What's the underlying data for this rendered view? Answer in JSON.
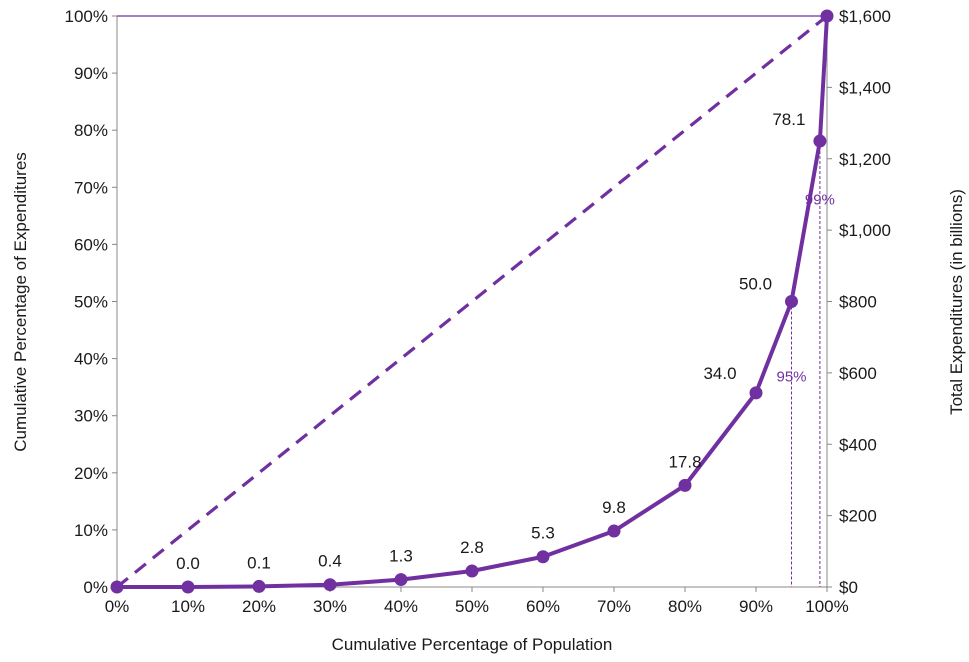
{
  "chart_data": {
    "type": "line",
    "x": [
      "0%",
      "10%",
      "20%",
      "30%",
      "40%",
      "50%",
      "60%",
      "70%",
      "80%",
      "90%",
      "95%",
      "99%",
      "100%"
    ],
    "x_values": [
      0,
      10,
      20,
      30,
      40,
      50,
      60,
      70,
      80,
      90,
      95,
      99,
      100
    ],
    "series": [
      {
        "values": [
          0,
          0.0,
          0.1,
          0.4,
          1.3,
          2.8,
          5.3,
          9.8,
          17.8,
          34.0,
          50.0,
          78.1,
          100
        ],
        "style": "solid"
      },
      {
        "x_values": [
          0,
          100
        ],
        "values": [
          0,
          100
        ],
        "style": "dashed"
      }
    ],
    "data_labels": [
      {
        "x": 10,
        "y": 0.0,
        "text": "0.0"
      },
      {
        "x": 20,
        "y": 0.1,
        "text": "0.1"
      },
      {
        "x": 30,
        "y": 0.4,
        "text": "0.4"
      },
      {
        "x": 40,
        "y": 1.3,
        "text": "1.3"
      },
      {
        "x": 50,
        "y": 2.8,
        "text": "2.8"
      },
      {
        "x": 60,
        "y": 5.3,
        "text": "5.3"
      },
      {
        "x": 70,
        "y": 9.8,
        "text": "9.8"
      },
      {
        "x": 80,
        "y": 17.8,
        "text": "17.8"
      },
      {
        "x": 90,
        "y": 34.0,
        "text": "34.0"
      },
      {
        "x": 95,
        "y": 50.0,
        "text": "50.0"
      },
      {
        "x": 99,
        "y": 78.1,
        "text": "78.1"
      }
    ],
    "annotations": [
      {
        "x": 95,
        "text": "95%",
        "y": 37
      },
      {
        "x": 99,
        "text": "99%",
        "y": 68
      }
    ],
    "xlabel": "Cumulative Percentage of Population",
    "ylabel": "Cumulative Percentage of Expenditures",
    "ylabel_right": "Total Expenditures  (in billions)",
    "xlim": [
      0,
      100
    ],
    "ylim": [
      0,
      100
    ],
    "ylim_right": [
      0,
      1600
    ],
    "x_ticks": [
      "0%",
      "10%",
      "20%",
      "30%",
      "40%",
      "50%",
      "60%",
      "70%",
      "80%",
      "90%",
      "100%"
    ],
    "y_ticks": [
      "0%",
      "10%",
      "20%",
      "30%",
      "40%",
      "50%",
      "60%",
      "70%",
      "80%",
      "90%",
      "100%"
    ],
    "y_ticks_right": [
      "$0",
      "$200",
      "$400",
      "$600",
      "$800",
      "$1,000",
      "$1,200",
      "$1,400",
      "$1,600"
    ],
    "grid": false,
    "colors": {
      "line": "#7030a0",
      "annotation": "#7030a0",
      "axis": "#888888"
    }
  }
}
